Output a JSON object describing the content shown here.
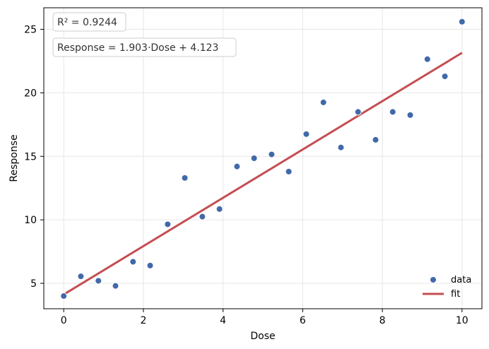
{
  "chart_data": {
    "type": "scatter",
    "title": "",
    "xlabel": "Dose",
    "ylabel": "Response",
    "xlim": [
      -0.5,
      10.5
    ],
    "ylim": [
      3.0,
      26.7
    ],
    "xticks": [
      0,
      2,
      4,
      6,
      8,
      10
    ],
    "yticks": [
      5,
      10,
      15,
      20,
      25
    ],
    "xtick_labels": [
      "0",
      "2",
      "4",
      "6",
      "8",
      "10"
    ],
    "ytick_labels": [
      "5",
      "10",
      "15",
      "20",
      "25"
    ],
    "grid": true,
    "legend_position": "bottom-right",
    "series": [
      {
        "name": "data",
        "kind": "scatter",
        "color": "#4169aa",
        "points": [
          {
            "x": 0.0,
            "y": 4.0
          },
          {
            "x": 0.43,
            "y": 5.55
          },
          {
            "x": 0.87,
            "y": 5.2
          },
          {
            "x": 1.3,
            "y": 4.8
          },
          {
            "x": 1.74,
            "y": 6.7
          },
          {
            "x": 2.17,
            "y": 6.4
          },
          {
            "x": 2.61,
            "y": 9.65
          },
          {
            "x": 3.04,
            "y": 13.3
          },
          {
            "x": 3.48,
            "y": 10.25
          },
          {
            "x": 3.91,
            "y": 10.85
          },
          {
            "x": 4.35,
            "y": 14.2
          },
          {
            "x": 4.78,
            "y": 14.85
          },
          {
            "x": 5.22,
            "y": 15.15
          },
          {
            "x": 5.65,
            "y": 13.8
          },
          {
            "x": 6.09,
            "y": 16.75
          },
          {
            "x": 6.52,
            "y": 19.25
          },
          {
            "x": 6.96,
            "y": 15.7
          },
          {
            "x": 7.39,
            "y": 18.5
          },
          {
            "x": 7.83,
            "y": 16.3
          },
          {
            "x": 8.26,
            "y": 18.5
          },
          {
            "x": 8.7,
            "y": 18.25
          },
          {
            "x": 9.13,
            "y": 22.65
          },
          {
            "x": 9.57,
            "y": 21.3
          },
          {
            "x": 10.0,
            "y": 25.6
          }
        ]
      },
      {
        "name": "fit",
        "kind": "line",
        "color": "#c44e52",
        "slope": 1.903,
        "intercept": 4.123,
        "x_range": [
          0,
          10
        ]
      }
    ],
    "annotations": {
      "r2": "R² = 0.9244",
      "equation": "Response = 1.903·Dose + 4.123"
    }
  }
}
